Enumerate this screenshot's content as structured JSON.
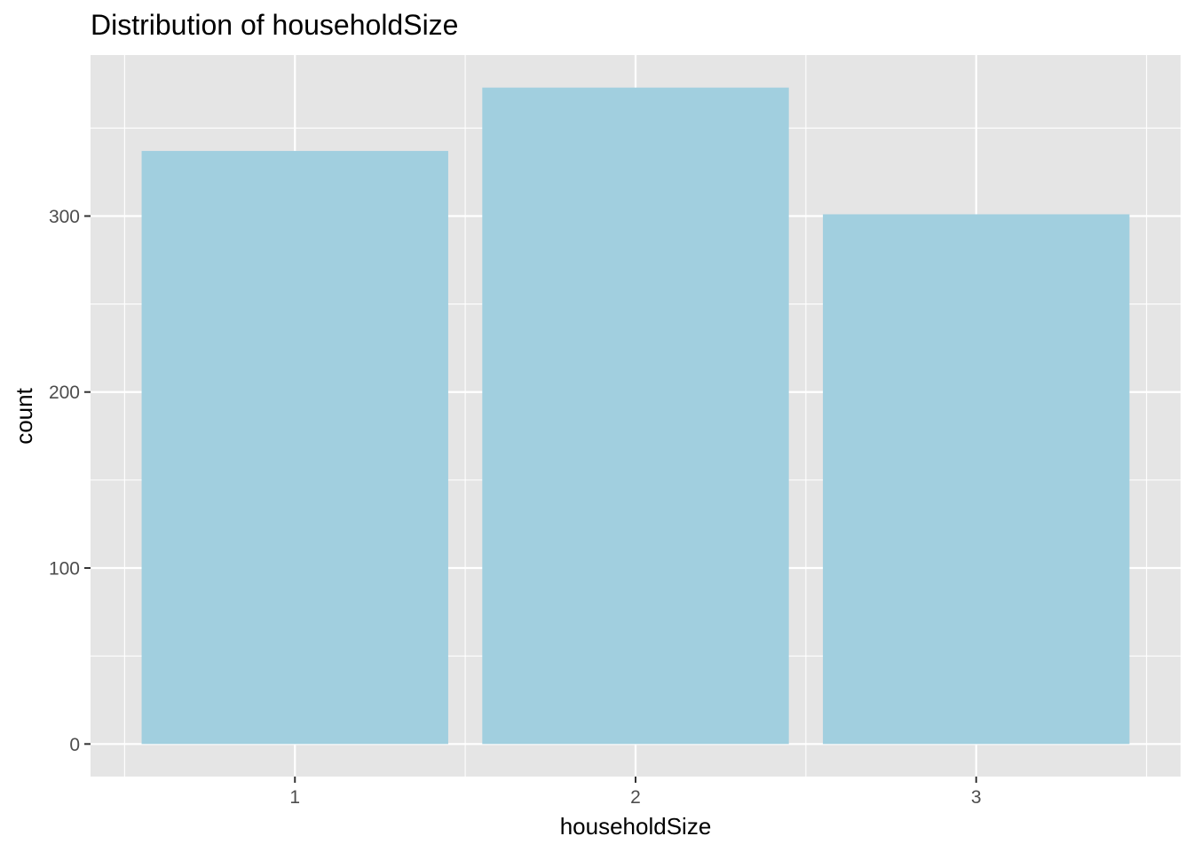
{
  "chart_data": {
    "type": "bar",
    "title": "Distribution of householdSize",
    "xlabel": "householdSize",
    "ylabel": "count",
    "categories": [
      "1",
      "2",
      "3"
    ],
    "values": [
      337,
      373,
      301
    ],
    "ylim": [
      -18.5,
      391.5
    ],
    "yticks": [
      0,
      100,
      200,
      300
    ],
    "yticks_minor": [
      50,
      150,
      250,
      350
    ],
    "grid": true,
    "legend": "none",
    "colors": {
      "bar": "#a1cfdf",
      "panel": "#e5e5e5",
      "grid": "#ffffff",
      "tick_text": "#4d4d4d",
      "tick_mark": "#333333"
    }
  }
}
